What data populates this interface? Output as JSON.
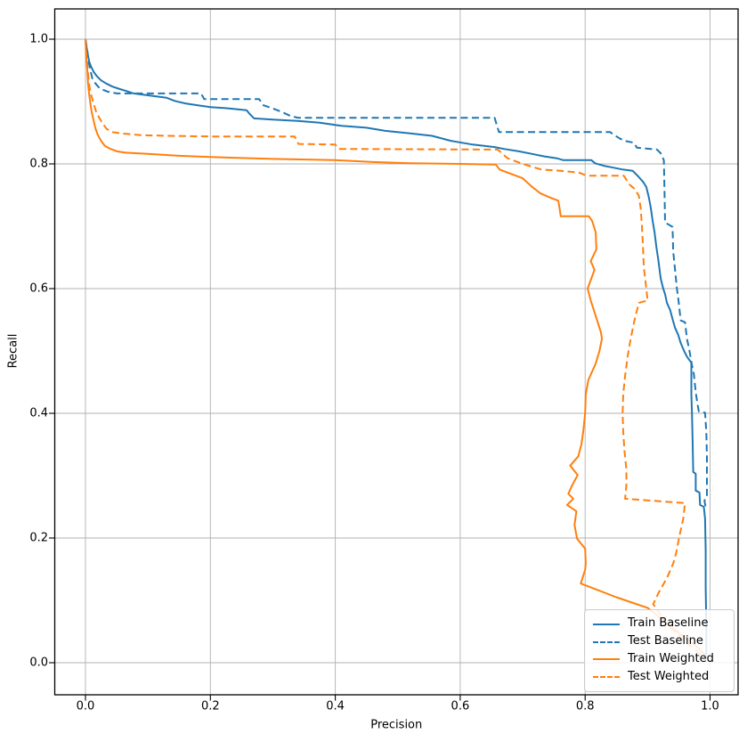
{
  "chart_data": {
    "type": "line",
    "title": "",
    "xlabel": "Precision",
    "ylabel": "Recall",
    "xlim": [
      -0.05,
      1.05
    ],
    "ylim": [
      -0.05,
      1.05
    ],
    "grid": true,
    "legend_position": "lower right",
    "xticks": [
      0.0,
      0.2,
      0.4,
      0.6,
      0.8,
      1.0
    ],
    "yticks": [
      0.0,
      0.2,
      0.4,
      0.6,
      0.8,
      1.0
    ],
    "xtick_labels": [
      "0.0",
      "0.2",
      "0.4",
      "0.6",
      "0.8",
      "1.0"
    ],
    "ytick_labels": [
      "0.0",
      "0.2",
      "0.4",
      "0.6",
      "0.8",
      "1.0"
    ],
    "colors": {
      "baseline": "#1f77b4",
      "weighted": "#ff7f0e",
      "grid": "#b0b0b0",
      "spine": "#000000"
    },
    "series": [
      {
        "name": "Train Baseline",
        "color": "#1f77b4",
        "line_style": "solid",
        "points": [
          [
            0.0,
            1.0
          ],
          [
            0.002,
            0.986
          ],
          [
            0.004,
            0.974
          ],
          [
            0.006,
            0.964
          ],
          [
            0.009,
            0.956
          ],
          [
            0.013,
            0.948
          ],
          [
            0.018,
            0.941
          ],
          [
            0.025,
            0.934
          ],
          [
            0.033,
            0.929
          ],
          [
            0.043,
            0.924
          ],
          [
            0.055,
            0.92
          ],
          [
            0.065,
            0.917
          ],
          [
            0.077,
            0.913
          ],
          [
            0.1,
            0.91
          ],
          [
            0.13,
            0.906
          ],
          [
            0.143,
            0.901
          ],
          [
            0.16,
            0.897
          ],
          [
            0.18,
            0.894
          ],
          [
            0.2,
            0.891
          ],
          [
            0.23,
            0.889
          ],
          [
            0.258,
            0.886
          ],
          [
            0.263,
            0.88
          ],
          [
            0.27,
            0.873
          ],
          [
            0.3,
            0.871
          ],
          [
            0.34,
            0.869
          ],
          [
            0.375,
            0.866
          ],
          [
            0.41,
            0.861
          ],
          [
            0.45,
            0.858
          ],
          [
            0.48,
            0.853
          ],
          [
            0.52,
            0.849
          ],
          [
            0.555,
            0.845
          ],
          [
            0.585,
            0.837
          ],
          [
            0.62,
            0.831
          ],
          [
            0.655,
            0.827
          ],
          [
            0.67,
            0.824
          ],
          [
            0.695,
            0.82
          ],
          [
            0.715,
            0.816
          ],
          [
            0.735,
            0.812
          ],
          [
            0.755,
            0.809
          ],
          [
            0.765,
            0.806
          ],
          [
            0.81,
            0.806
          ],
          [
            0.816,
            0.801
          ],
          [
            0.83,
            0.797
          ],
          [
            0.845,
            0.794
          ],
          [
            0.86,
            0.791
          ],
          [
            0.876,
            0.789
          ],
          [
            0.885,
            0.78
          ],
          [
            0.893,
            0.771
          ],
          [
            0.898,
            0.763
          ],
          [
            0.902,
            0.746
          ],
          [
            0.905,
            0.73
          ],
          [
            0.908,
            0.709
          ],
          [
            0.911,
            0.691
          ],
          [
            0.914,
            0.667
          ],
          [
            0.917,
            0.647
          ],
          [
            0.921,
            0.616
          ],
          [
            0.925,
            0.6
          ],
          [
            0.928,
            0.591
          ],
          [
            0.931,
            0.577
          ],
          [
            0.936,
            0.566
          ],
          [
            0.94,
            0.551
          ],
          [
            0.944,
            0.537
          ],
          [
            0.949,
            0.526
          ],
          [
            0.953,
            0.513
          ],
          [
            0.958,
            0.501
          ],
          [
            0.963,
            0.491
          ],
          [
            0.97,
            0.481
          ],
          [
            0.97,
            0.43
          ],
          [
            0.971,
            0.4
          ],
          [
            0.972,
            0.357
          ],
          [
            0.973,
            0.306
          ],
          [
            0.977,
            0.303
          ],
          [
            0.977,
            0.276
          ],
          [
            0.983,
            0.273
          ],
          [
            0.984,
            0.253
          ],
          [
            0.99,
            0.25
          ],
          [
            0.992,
            0.231
          ],
          [
            0.993,
            0.18
          ],
          [
            0.993,
            0.12
          ],
          [
            0.994,
            0.06
          ],
          [
            0.994,
            0.011
          ]
        ]
      },
      {
        "name": "Test Baseline",
        "color": "#1f77b4",
        "line_style": "dashed",
        "points": [
          [
            0.0,
            1.0
          ],
          [
            0.003,
            0.981
          ],
          [
            0.005,
            0.964
          ],
          [
            0.008,
            0.95
          ],
          [
            0.011,
            0.937
          ],
          [
            0.016,
            0.929
          ],
          [
            0.023,
            0.921
          ],
          [
            0.035,
            0.916
          ],
          [
            0.05,
            0.913
          ],
          [
            0.185,
            0.913
          ],
          [
            0.19,
            0.904
          ],
          [
            0.278,
            0.904
          ],
          [
            0.285,
            0.894
          ],
          [
            0.3,
            0.889
          ],
          [
            0.315,
            0.883
          ],
          [
            0.328,
            0.877
          ],
          [
            0.34,
            0.874
          ],
          [
            0.655,
            0.874
          ],
          [
            0.662,
            0.851
          ],
          [
            0.84,
            0.851
          ],
          [
            0.847,
            0.846
          ],
          [
            0.855,
            0.841
          ],
          [
            0.863,
            0.837
          ],
          [
            0.878,
            0.834
          ],
          [
            0.883,
            0.826
          ],
          [
            0.915,
            0.823
          ],
          [
            0.921,
            0.817
          ],
          [
            0.926,
            0.806
          ],
          [
            0.927,
            0.76
          ],
          [
            0.928,
            0.706
          ],
          [
            0.94,
            0.699
          ],
          [
            0.941,
            0.66
          ],
          [
            0.944,
            0.63
          ],
          [
            0.947,
            0.6
          ],
          [
            0.95,
            0.577
          ],
          [
            0.953,
            0.549
          ],
          [
            0.96,
            0.546
          ],
          [
            0.963,
            0.52
          ],
          [
            0.967,
            0.5
          ],
          [
            0.971,
            0.477
          ],
          [
            0.974,
            0.463
          ],
          [
            0.977,
            0.434
          ],
          [
            0.98,
            0.414
          ],
          [
            0.982,
            0.403
          ],
          [
            0.992,
            0.401
          ],
          [
            0.994,
            0.37
          ],
          [
            0.995,
            0.33
          ],
          [
            0.995,
            0.29
          ],
          [
            0.995,
            0.267
          ],
          [
            0.991,
            0.26
          ],
          [
            0.993,
            0.249
          ]
        ]
      },
      {
        "name": "Train Weighted",
        "color": "#ff7f0e",
        "line_style": "solid",
        "points": [
          [
            0.0,
            1.0
          ],
          [
            0.001,
            0.973
          ],
          [
            0.003,
            0.95
          ],
          [
            0.004,
            0.93
          ],
          [
            0.006,
            0.911
          ],
          [
            0.008,
            0.896
          ],
          [
            0.01,
            0.883
          ],
          [
            0.013,
            0.87
          ],
          [
            0.016,
            0.857
          ],
          [
            0.02,
            0.846
          ],
          [
            0.025,
            0.837
          ],
          [
            0.031,
            0.829
          ],
          [
            0.04,
            0.824
          ],
          [
            0.051,
            0.82
          ],
          [
            0.064,
            0.818
          ],
          [
            0.1,
            0.816
          ],
          [
            0.15,
            0.813
          ],
          [
            0.2,
            0.811
          ],
          [
            0.3,
            0.808
          ],
          [
            0.4,
            0.806
          ],
          [
            0.46,
            0.803
          ],
          [
            0.52,
            0.801
          ],
          [
            0.6,
            0.8
          ],
          [
            0.657,
            0.799
          ],
          [
            0.663,
            0.791
          ],
          [
            0.676,
            0.786
          ],
          [
            0.7,
            0.777
          ],
          [
            0.714,
            0.764
          ],
          [
            0.728,
            0.753
          ],
          [
            0.744,
            0.746
          ],
          [
            0.757,
            0.741
          ],
          [
            0.759,
            0.73
          ],
          [
            0.761,
            0.716
          ],
          [
            0.806,
            0.716
          ],
          [
            0.811,
            0.709
          ],
          [
            0.813,
            0.703
          ],
          [
            0.817,
            0.69
          ],
          [
            0.818,
            0.663
          ],
          [
            0.809,
            0.644
          ],
          [
            0.815,
            0.63
          ],
          [
            0.804,
            0.6
          ],
          [
            0.809,
            0.581
          ],
          [
            0.818,
            0.553
          ],
          [
            0.825,
            0.531
          ],
          [
            0.827,
            0.52
          ],
          [
            0.823,
            0.5
          ],
          [
            0.817,
            0.48
          ],
          [
            0.805,
            0.453
          ],
          [
            0.801,
            0.43
          ],
          [
            0.8,
            0.4
          ],
          [
            0.797,
            0.371
          ],
          [
            0.794,
            0.35
          ],
          [
            0.789,
            0.331
          ],
          [
            0.776,
            0.316
          ],
          [
            0.788,
            0.301
          ],
          [
            0.779,
            0.284
          ],
          [
            0.773,
            0.271
          ],
          [
            0.781,
            0.263
          ],
          [
            0.771,
            0.253
          ],
          [
            0.786,
            0.243
          ],
          [
            0.783,
            0.221
          ],
          [
            0.787,
            0.199
          ],
          [
            0.8,
            0.183
          ],
          [
            0.801,
            0.16
          ],
          [
            0.8,
            0.149
          ],
          [
            0.793,
            0.127
          ],
          [
            0.85,
            0.105
          ],
          [
            0.9,
            0.088
          ],
          [
            0.95,
            0.048
          ],
          [
            0.98,
            0.025
          ],
          [
            0.996,
            0.008
          ]
        ]
      },
      {
        "name": "Test Weighted",
        "color": "#ff7f0e",
        "line_style": "dashed",
        "points": [
          [
            0.0,
            1.0
          ],
          [
            0.002,
            0.97
          ],
          [
            0.004,
            0.947
          ],
          [
            0.006,
            0.926
          ],
          [
            0.009,
            0.911
          ],
          [
            0.013,
            0.897
          ],
          [
            0.017,
            0.884
          ],
          [
            0.022,
            0.874
          ],
          [
            0.028,
            0.864
          ],
          [
            0.034,
            0.856
          ],
          [
            0.043,
            0.851
          ],
          [
            0.056,
            0.849
          ],
          [
            0.09,
            0.846
          ],
          [
            0.134,
            0.845
          ],
          [
            0.2,
            0.844
          ],
          [
            0.335,
            0.844
          ],
          [
            0.341,
            0.832
          ],
          [
            0.4,
            0.831
          ],
          [
            0.406,
            0.824
          ],
          [
            0.66,
            0.823
          ],
          [
            0.676,
            0.809
          ],
          [
            0.7,
            0.8
          ],
          [
            0.73,
            0.791
          ],
          [
            0.76,
            0.789
          ],
          [
            0.79,
            0.786
          ],
          [
            0.803,
            0.781
          ],
          [
            0.862,
            0.781
          ],
          [
            0.867,
            0.773
          ],
          [
            0.871,
            0.767
          ],
          [
            0.879,
            0.76
          ],
          [
            0.886,
            0.749
          ],
          [
            0.889,
            0.729
          ],
          [
            0.891,
            0.7
          ],
          [
            0.893,
            0.66
          ],
          [
            0.894,
            0.634
          ],
          [
            0.897,
            0.609
          ],
          [
            0.9,
            0.581
          ],
          [
            0.886,
            0.577
          ],
          [
            0.879,
            0.549
          ],
          [
            0.873,
            0.52
          ],
          [
            0.868,
            0.491
          ],
          [
            0.864,
            0.46
          ],
          [
            0.861,
            0.431
          ],
          [
            0.86,
            0.4
          ],
          [
            0.861,
            0.369
          ],
          [
            0.863,
            0.34
          ],
          [
            0.866,
            0.31
          ],
          [
            0.866,
            0.284
          ],
          [
            0.864,
            0.263
          ],
          [
            0.96,
            0.256
          ],
          [
            0.957,
            0.23
          ],
          [
            0.951,
            0.203
          ],
          [
            0.946,
            0.177
          ],
          [
            0.941,
            0.159
          ],
          [
            0.931,
            0.136
          ],
          [
            0.917,
            0.111
          ],
          [
            0.909,
            0.094
          ],
          [
            0.93,
            0.063
          ],
          [
            0.96,
            0.034
          ],
          [
            0.99,
            0.01
          ]
        ]
      }
    ]
  }
}
